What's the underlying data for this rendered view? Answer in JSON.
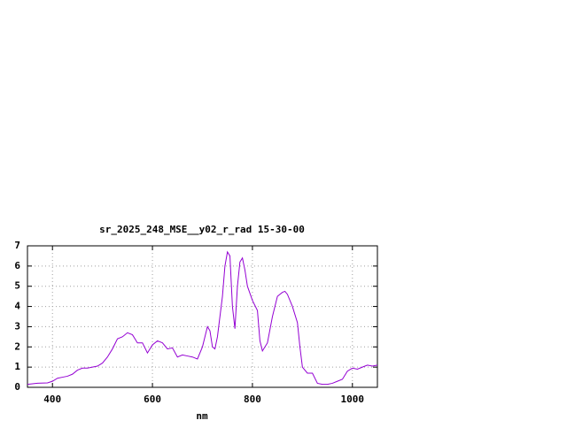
{
  "chart_data": {
    "type": "line",
    "title": "sr_2025_248_MSE__y02_r_rad 15-30-00",
    "x_label": "nm",
    "x": [
      350,
      370,
      390,
      400,
      410,
      420,
      430,
      440,
      450,
      460,
      470,
      480,
      490,
      500,
      510,
      520,
      530,
      540,
      550,
      560,
      570,
      580,
      590,
      600,
      610,
      620,
      630,
      640,
      650,
      660,
      670,
      680,
      690,
      700,
      710,
      715,
      720,
      725,
      730,
      740,
      745,
      750,
      755,
      760,
      765,
      770,
      775,
      780,
      785,
      790,
      800,
      810,
      815,
      820,
      830,
      840,
      850,
      860,
      865,
      870,
      880,
      890,
      895,
      900,
      910,
      920,
      930,
      940,
      950,
      960,
      970,
      980,
      990,
      1000,
      1010,
      1020,
      1030,
      1040,
      1050
    ],
    "series": [
      {
        "name": "sr_2025_248_MSE__y02_r_rad",
        "color": "#9400d3",
        "values": [
          0.15,
          0.2,
          0.22,
          0.3,
          0.45,
          0.5,
          0.55,
          0.65,
          0.85,
          0.95,
          0.95,
          1.0,
          1.05,
          1.2,
          1.5,
          1.9,
          2.4,
          2.5,
          2.7,
          2.6,
          2.2,
          2.2,
          1.7,
          2.1,
          2.3,
          2.2,
          1.9,
          1.95,
          1.5,
          1.6,
          1.55,
          1.5,
          1.4,
          2.0,
          3.0,
          2.8,
          2.0,
          1.9,
          2.5,
          4.5,
          6.0,
          6.7,
          6.5,
          4.0,
          2.9,
          5.0,
          6.2,
          6.4,
          5.8,
          5.0,
          4.3,
          3.8,
          2.3,
          1.8,
          2.2,
          3.5,
          4.5,
          4.7,
          4.75,
          4.6,
          4.0,
          3.2,
          2.0,
          1.0,
          0.7,
          0.7,
          0.2,
          0.15,
          0.15,
          0.2,
          0.3,
          0.4,
          0.8,
          0.95,
          0.9,
          1.0,
          1.1,
          1.05,
          1.1
        ]
      }
    ],
    "xlim": [
      350,
      1050
    ],
    "xticks": [
      400,
      600,
      800,
      1000
    ],
    "ylim": [
      0,
      7
    ],
    "yticks": [
      0,
      1,
      2,
      3,
      4,
      5,
      6,
      7
    ],
    "grid": true
  }
}
